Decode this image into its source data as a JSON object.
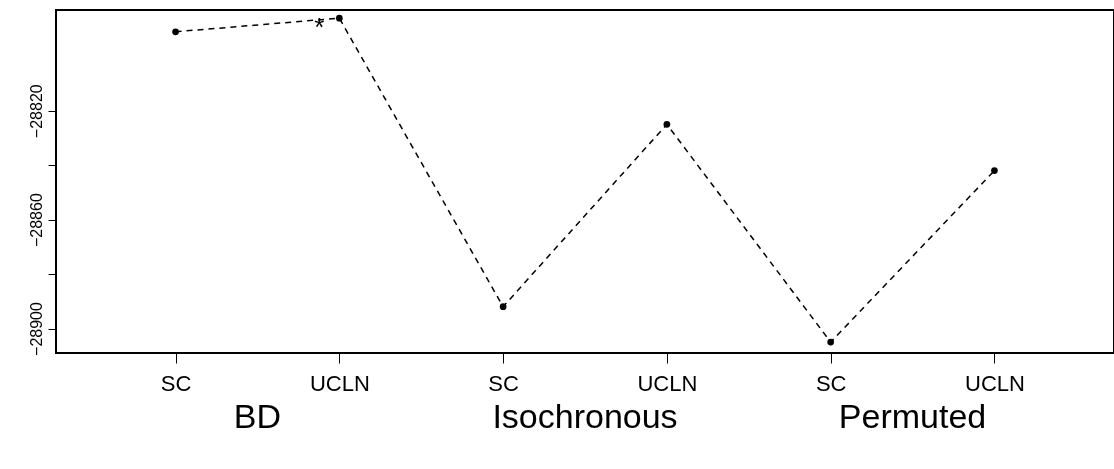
{
  "chart_data": {
    "type": "line",
    "categories": [
      "SC",
      "UCLN",
      "SC",
      "UCLN",
      "SC",
      "UCLN"
    ],
    "series": [
      {
        "color": "#000000",
        "values": [
          -28791,
          -28786,
          -28892,
          -28825,
          -28905,
          -28842
        ]
      }
    ],
    "ylim": [
      -28909,
      -28783
    ],
    "yticks": [
      -28900,
      {
        "value": -28880,
        "label": null
      },
      -28860,
      {
        "value": -28840,
        "label": null
      },
      -28820
    ],
    "marker": "circle",
    "line_style": "dashed",
    "annotations": [
      "BD",
      "Isochronous",
      "Permuted",
      {
        "text": "*",
        "y": -28786
      }
    ]
  }
}
